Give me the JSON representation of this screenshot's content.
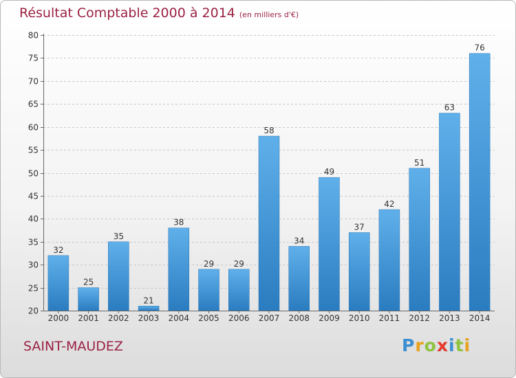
{
  "title": "Résultat Comptable 2000 à 2014",
  "unit_note": "(en milliers d'€)",
  "commune": "SAINT-MAUDEZ",
  "logo": {
    "letters": [
      "P",
      "r",
      "o",
      "x",
      "i",
      "t",
      "i"
    ],
    "colors": [
      "#3a8fd2",
      "#e8a21c",
      "#8fc440",
      "#e53a2c",
      "#3a8fd2",
      "#8fc440",
      "#e8a21c"
    ]
  },
  "colors": {
    "accent": "#9b2143",
    "bar": "#3d8fd4",
    "bar_light": "#5fb0ea"
  },
  "chart_data": {
    "type": "bar",
    "title": "Résultat Comptable 2000 à 2014",
    "xlabel": "",
    "ylabel": "",
    "categories": [
      "2000",
      "2001",
      "2002",
      "2003",
      "2004",
      "2005",
      "2006",
      "2007",
      "2008",
      "2009",
      "2010",
      "2011",
      "2012",
      "2013",
      "2014"
    ],
    "values": [
      32,
      25,
      35,
      21,
      38,
      29,
      29,
      58,
      34,
      49,
      37,
      42,
      51,
      63,
      76
    ],
    "ylim": [
      20,
      80
    ],
    "yticks": [
      20,
      25,
      30,
      35,
      40,
      45,
      50,
      55,
      60,
      65,
      70,
      75,
      80
    ],
    "grid": true,
    "legend": "none"
  }
}
